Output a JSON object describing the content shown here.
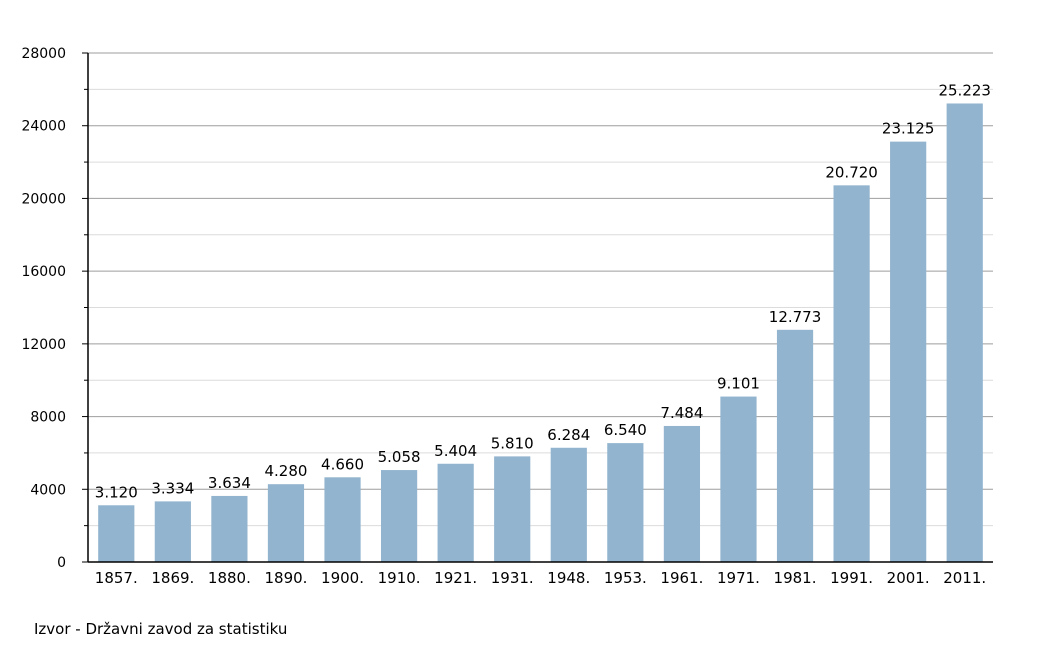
{
  "source_note": "Izvor - Državni zavod za statistiku",
  "colors": {
    "bar": "#92b4cf",
    "major_grid": "#9e9e9e",
    "minor_grid": "#dcdcdc",
    "axis": "#000000",
    "text": "#000000"
  },
  "chart_data": {
    "type": "bar",
    "title": "",
    "xlabel": "",
    "ylabel": "",
    "ylim": [
      0,
      28000
    ],
    "y_major_ticks": [
      0,
      4000,
      8000,
      12000,
      16000,
      20000,
      24000,
      28000
    ],
    "y_minor_step": 2000,
    "grid": true,
    "legend": "none",
    "categories": [
      "1857.",
      "1869.",
      "1880.",
      "1890.",
      "1900.",
      "1910.",
      "1921.",
      "1931.",
      "1948.",
      "1953.",
      "1961.",
      "1971.",
      "1981.",
      "1991.",
      "2001.",
      "2011."
    ],
    "values": [
      3120,
      3334,
      3634,
      4280,
      4660,
      5058,
      5404,
      5810,
      6284,
      6540,
      7484,
      9101,
      12773,
      20720,
      23125,
      25223
    ],
    "value_labels": [
      "3.120",
      "3.334",
      "3.634",
      "4.280",
      "4.660",
      "5.058",
      "5.404",
      "5.810",
      "6.284",
      "6.540",
      "7.484",
      "9.101",
      "12.773",
      "20.720",
      "23.125",
      "25.223"
    ]
  }
}
